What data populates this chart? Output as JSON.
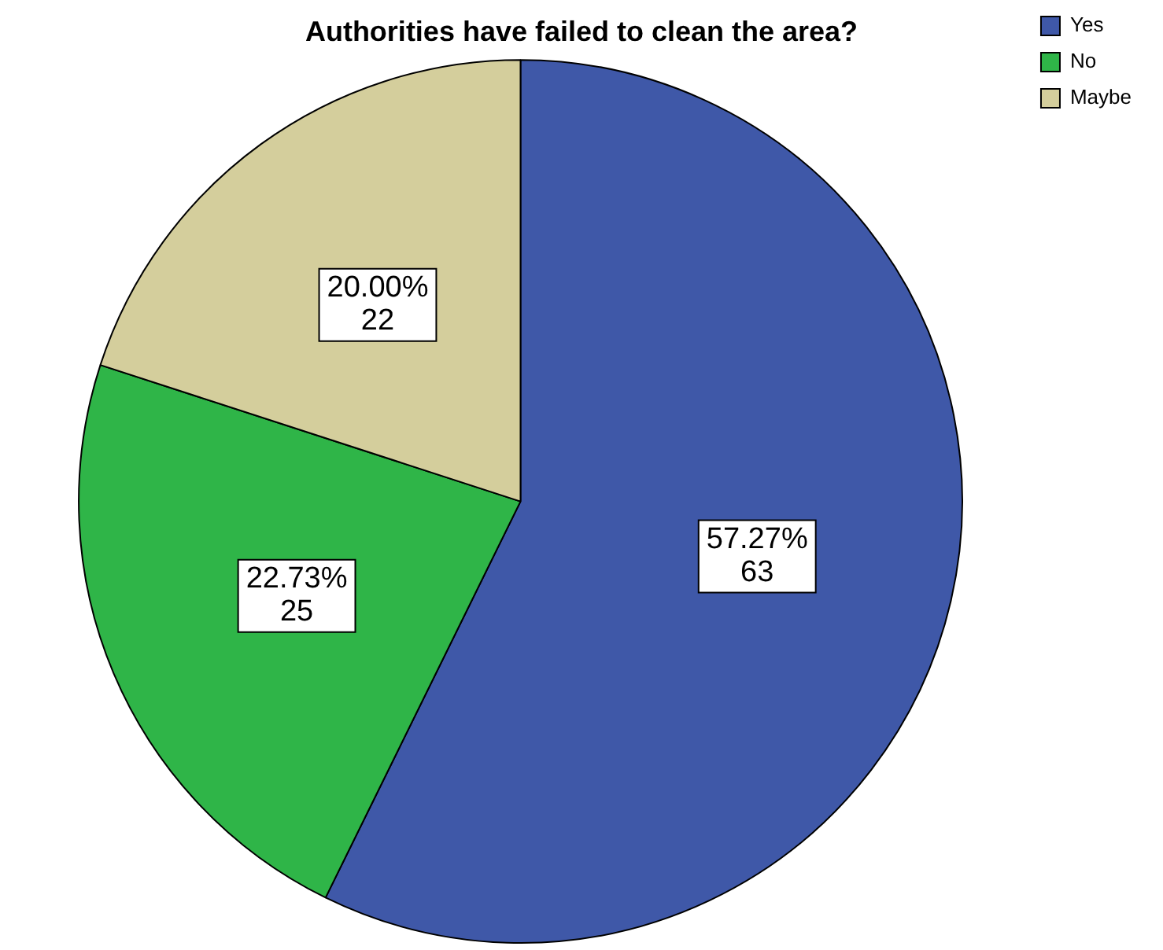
{
  "chart_data": {
    "type": "pie",
    "title": "Authorities have failed to clean the area?",
    "categories": [
      "Yes",
      "No",
      "Maybe"
    ],
    "values": [
      63,
      25,
      22
    ],
    "colors": [
      "#3f58a8",
      "#2fb548",
      "#d4ce9c"
    ],
    "value_labels": [
      "57.27%\n63",
      "22.73%\n25",
      "20.00%\n22"
    ],
    "legend": "top right"
  }
}
